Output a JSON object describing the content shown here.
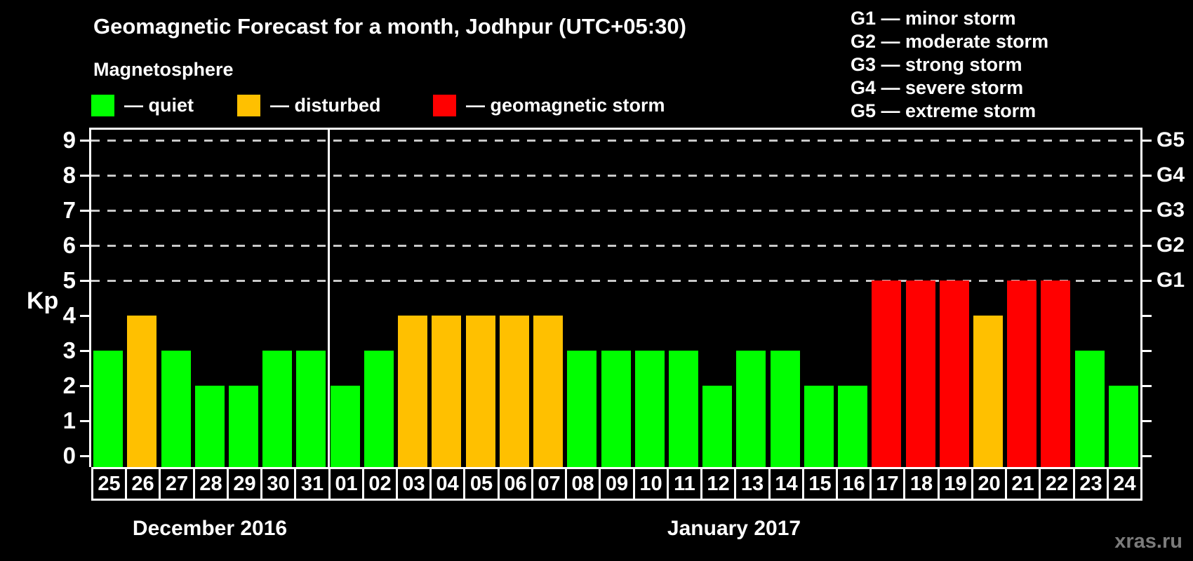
{
  "title": "Geomagnetic Forecast for a month, Jodhpur (UTC+05:30)",
  "subtitle": "Magnetosphere",
  "legend": {
    "items": {
      "quiet": {
        "label": "— quiet",
        "color": "#00ff00"
      },
      "disturbed": {
        "label": "— disturbed",
        "color": "#ffc000"
      },
      "storm": {
        "label": "— geomagnetic storm",
        "color": "#ff0000"
      }
    }
  },
  "g_legend": {
    "lines": [
      "G1 — minor storm",
      "G2 — moderate storm",
      "G3 — strong storm",
      "G4 — severe storm",
      "G5 — extreme storm"
    ]
  },
  "axis": {
    "ylabel": "Kp",
    "left_ticks": [
      0,
      1,
      2,
      3,
      4,
      5,
      6,
      7,
      8,
      9
    ],
    "right_labels": [
      {
        "label": "G1",
        "kp": 5
      },
      {
        "label": "G2",
        "kp": 6
      },
      {
        "label": "G3",
        "kp": 7
      },
      {
        "label": "G4",
        "kp": 8
      },
      {
        "label": "G5",
        "kp": 9
      }
    ]
  },
  "watermark": "xras.ru",
  "chart_data": {
    "type": "bar",
    "ylabel": "Kp",
    "ylim": [
      0,
      9.6
    ],
    "grid": "dashed horizontal at Kp 5-9 only",
    "gridlines_kp": [
      5,
      6,
      7,
      8,
      9
    ],
    "legend_position": "top-left",
    "state_colors": {
      "quiet": "#00ff00",
      "disturbed": "#ffc000",
      "storm": "#ff0000"
    },
    "months": [
      {
        "label": "December 2016",
        "days": [
          {
            "day": "25",
            "kp": 3,
            "state": "quiet"
          },
          {
            "day": "26",
            "kp": 4,
            "state": "disturbed"
          },
          {
            "day": "27",
            "kp": 3,
            "state": "quiet"
          },
          {
            "day": "28",
            "kp": 2,
            "state": "quiet"
          },
          {
            "day": "29",
            "kp": 2,
            "state": "quiet"
          },
          {
            "day": "30",
            "kp": 3,
            "state": "quiet"
          },
          {
            "day": "31",
            "kp": 3,
            "state": "quiet"
          }
        ]
      },
      {
        "label": "January 2017",
        "days": [
          {
            "day": "01",
            "kp": 2,
            "state": "quiet"
          },
          {
            "day": "02",
            "kp": 3,
            "state": "quiet"
          },
          {
            "day": "03",
            "kp": 4,
            "state": "disturbed"
          },
          {
            "day": "04",
            "kp": 4,
            "state": "disturbed"
          },
          {
            "day": "05",
            "kp": 4,
            "state": "disturbed"
          },
          {
            "day": "06",
            "kp": 4,
            "state": "disturbed"
          },
          {
            "day": "07",
            "kp": 4,
            "state": "disturbed"
          },
          {
            "day": "08",
            "kp": 3,
            "state": "quiet"
          },
          {
            "day": "09",
            "kp": 3,
            "state": "quiet"
          },
          {
            "day": "10",
            "kp": 3,
            "state": "quiet"
          },
          {
            "day": "11",
            "kp": 3,
            "state": "quiet"
          },
          {
            "day": "12",
            "kp": 2,
            "state": "quiet"
          },
          {
            "day": "13",
            "kp": 3,
            "state": "quiet"
          },
          {
            "day": "14",
            "kp": 3,
            "state": "quiet"
          },
          {
            "day": "15",
            "kp": 2,
            "state": "quiet"
          },
          {
            "day": "16",
            "kp": 2,
            "state": "quiet"
          },
          {
            "day": "17",
            "kp": 5,
            "state": "storm"
          },
          {
            "day": "18",
            "kp": 5,
            "state": "storm"
          },
          {
            "day": "19",
            "kp": 5,
            "state": "storm"
          },
          {
            "day": "20",
            "kp": 4,
            "state": "disturbed"
          },
          {
            "day": "21",
            "kp": 5,
            "state": "storm"
          },
          {
            "day": "22",
            "kp": 5,
            "state": "storm"
          },
          {
            "day": "23",
            "kp": 3,
            "state": "quiet"
          },
          {
            "day": "24",
            "kp": 2,
            "state": "quiet"
          }
        ]
      }
    ]
  }
}
